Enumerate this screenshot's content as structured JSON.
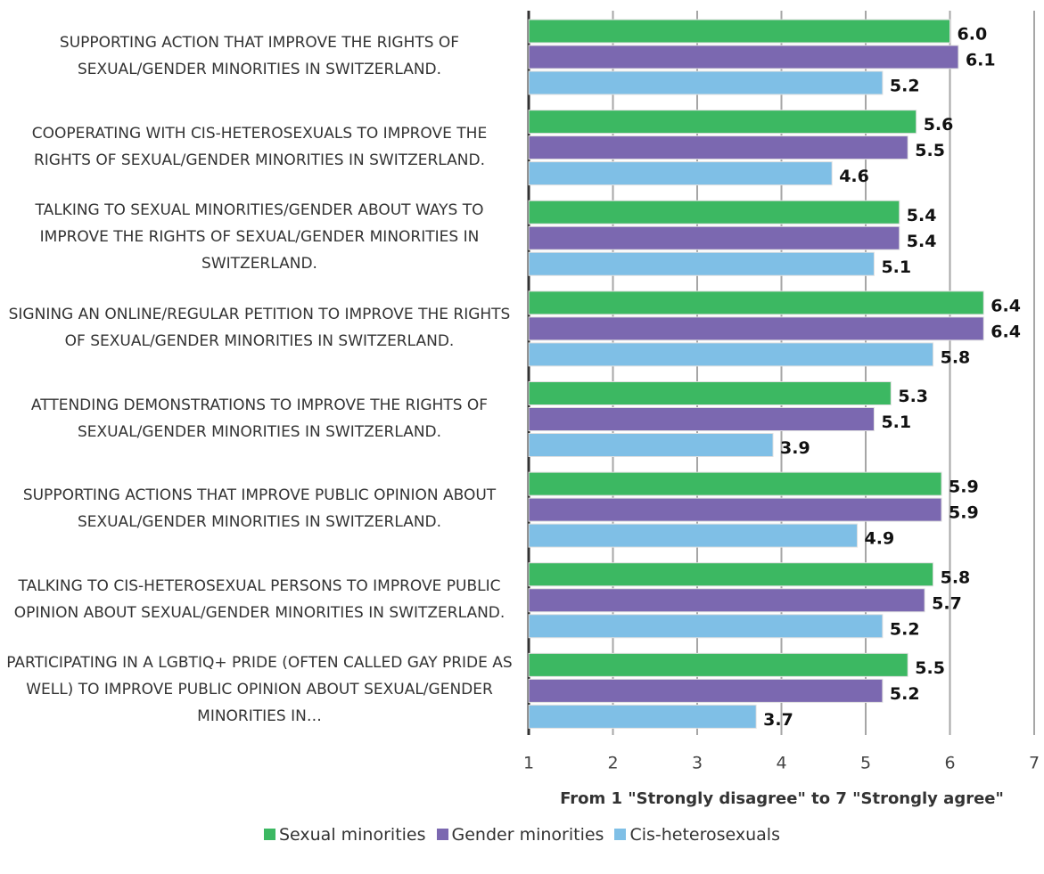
{
  "chart_data": {
    "type": "barh",
    "categories": [
      "SUPPORTING ACTION THAT IMPROVE THE RIGHTS OF SEXUAL/GENDER MINORITIES IN SWITZERLAND.",
      "COOPERATING WITH CIS-HETEROSEXUALS TO IMPROVE THE RIGHTS OF SEXUAL/GENDER MINORITIES IN SWITZERLAND.",
      "TALKING TO SEXUAL MINORITIES/GENDER ABOUT WAYS TO IMPROVE THE RIGHTS OF SEXUAL/GENDER MINORITIES IN SWITZERLAND.",
      "SIGNING AN ONLINE/REGULAR PETITION TO IMPROVE THE RIGHTS OF SEXUAL/GENDER MINORITIES IN SWITZERLAND.",
      "ATTENDING DEMONSTRATIONS TO IMPROVE THE RIGHTS OF SEXUAL/GENDER MINORITIES IN SWITZERLAND.",
      "SUPPORTING ACTIONS THAT IMPROVE PUBLIC OPINION ABOUT SEXUAL/GENDER MINORITIES IN SWITZERLAND.",
      "TALKING TO CIS-HETEROSEXUAL PERSONS TO IMPROVE PUBLIC OPINION ABOUT SEXUAL/GENDER MINORITIES IN SWITZERLAND.",
      "PARTICIPATING IN A LGBTIQ+ PRIDE (OFTEN CALLED GAY PRIDE AS WELL) TO IMPROVE PUBLIC OPINION ABOUT SEXUAL/GENDER MINORITIES IN…"
    ],
    "series": [
      {
        "name": "Sexual minorities",
        "color": "#3cb862",
        "values": [
          6,
          5.6,
          5.4,
          6.4,
          5.3,
          5.9,
          5.8,
          5.5
        ],
        "value_labels": [
          "6.0",
          "5.6",
          "5.4",
          "6.4",
          "5.3",
          "5.9",
          "5.8",
          "5.5"
        ]
      },
      {
        "name": "Gender minorities",
        "color": "#7b68b0",
        "values": [
          6.1,
          5.5,
          5.4,
          6.4,
          5.1,
          5.9,
          5.7,
          5.2
        ],
        "value_labels": [
          "6.1",
          "5.5",
          "5.4",
          "6.4",
          "5.1",
          "5.9",
          "5.7",
          "5.2"
        ]
      },
      {
        "name": "Cis-heterosexuals",
        "color": "#7fbfe6",
        "values": [
          5.2,
          4.6,
          5.1,
          5.8,
          3.9,
          4.9,
          5.2,
          3.7
        ],
        "value_labels": [
          "5.2",
          "4.6",
          "5.1",
          "5.8",
          "3.9",
          "4.9",
          "5.2",
          "3.7"
        ]
      }
    ],
    "xlabel": "From 1 \"Strongly disagree\" to 7 \"Strongly agree\"",
    "xlim": [
      1,
      7
    ],
    "xticks": [
      1,
      2,
      3,
      4,
      5,
      6,
      7
    ],
    "grid": true,
    "legend": "bottom"
  }
}
